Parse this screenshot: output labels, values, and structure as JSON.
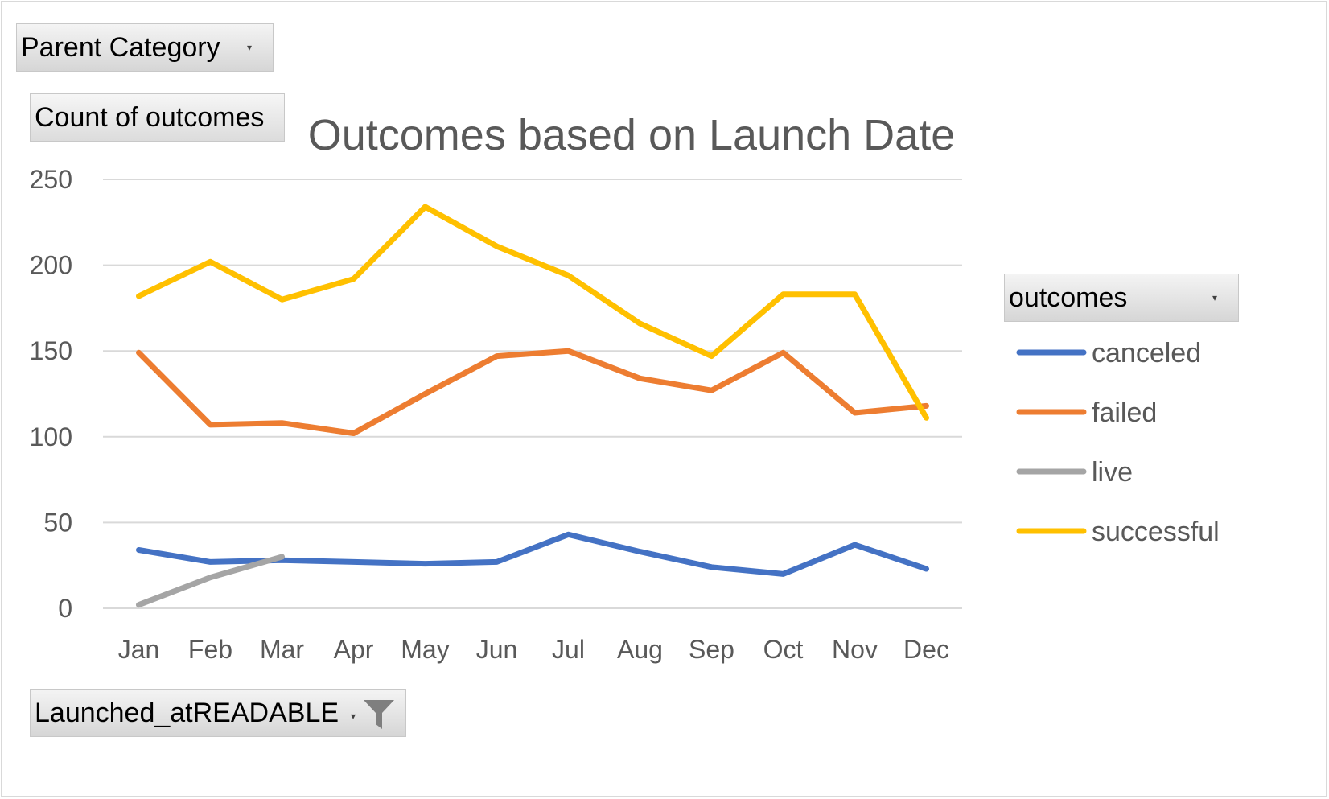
{
  "filters": {
    "parent_category": "Parent Category",
    "values_field": "Count of outcomes",
    "legend_field": "outcomes",
    "axis_field": "Launched_atREADABLE"
  },
  "chart_data": {
    "type": "line",
    "title": "Outcomes based on Launch Date",
    "xlabel": "",
    "ylabel": "",
    "categories": [
      "Jan",
      "Feb",
      "Mar",
      "Apr",
      "May",
      "Jun",
      "Jul",
      "Aug",
      "Sep",
      "Oct",
      "Nov",
      "Dec"
    ],
    "ylim": [
      0,
      250
    ],
    "yticks": [
      0,
      50,
      100,
      150,
      200,
      250
    ],
    "grid": true,
    "legend_position": "right",
    "series": [
      {
        "name": "canceled",
        "color": "#4472C4",
        "values": [
          34,
          27,
          28,
          27,
          26,
          27,
          43,
          33,
          24,
          20,
          37,
          23
        ]
      },
      {
        "name": "failed",
        "color": "#ED7D31",
        "values": [
          149,
          107,
          108,
          102,
          125,
          147,
          150,
          134,
          127,
          149,
          114,
          118
        ]
      },
      {
        "name": "live",
        "color": "#A5A5A5",
        "values": [
          2,
          18,
          30,
          null,
          null,
          null,
          null,
          null,
          null,
          null,
          null,
          null
        ]
      },
      {
        "name": "successful",
        "color": "#FFC000",
        "values": [
          182,
          202,
          180,
          192,
          234,
          211,
          194,
          166,
          147,
          183,
          183,
          111
        ]
      }
    ]
  }
}
